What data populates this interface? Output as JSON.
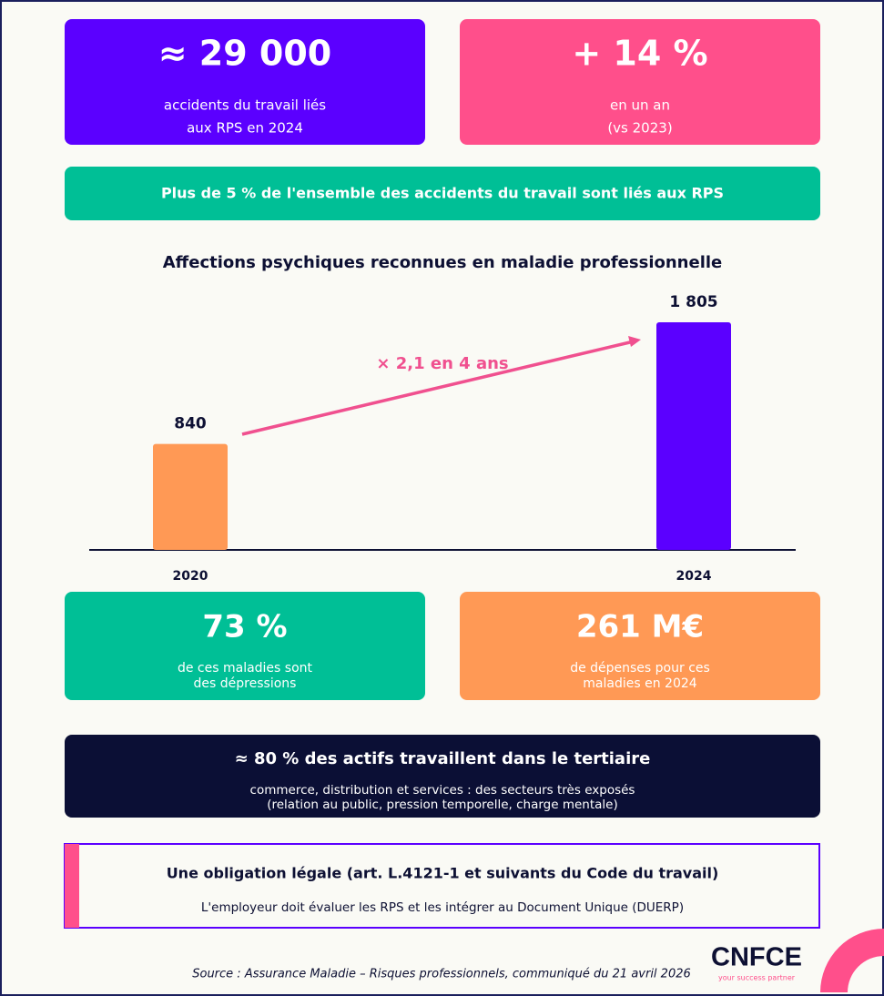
{
  "cards": [
    {
      "value": "≈ 29 000",
      "lines": [
        "accidents du travail liés",
        "aux RPS en 2024"
      ]
    },
    {
      "value": "+ 14 %",
      "lines": [
        "en un an",
        "(vs 2023)"
      ]
    }
  ],
  "banner": "Plus de 5 % de l'ensemble des accidents du travail sont liés aux RPS",
  "chart_data": {
    "type": "bar",
    "title": "Affections psychiques reconnues en maladie professionnelle",
    "categories": [
      "2020",
      "2024"
    ],
    "values": [
      840,
      1805
    ],
    "value_labels": [
      "840",
      "1 805"
    ],
    "colors": [
      "#ff9955",
      "#5b00ff"
    ],
    "ylim": [
      0,
      1805
    ],
    "annotation": "× 2,1 en 4 ans"
  },
  "cards2": [
    {
      "value": "73 %",
      "lines": [
        "de ces maladies sont",
        "des dépressions"
      ]
    },
    {
      "value": "261 M€",
      "lines": [
        "de dépenses pour ces",
        "maladies en 2024"
      ]
    }
  ],
  "tertiary": {
    "title": "≈ 80 % des actifs travaillent dans le tertiaire",
    "lines": [
      "commerce, distribution et services : des secteurs très exposés",
      "(relation au public, pression temporelle, charge mentale)"
    ]
  },
  "legal": {
    "title": "Une obligation légale (art. L.4121-1 et suivants du Code du travail)",
    "text": "L'employeur doit évaluer les RPS et les intégrer au Document Unique (DUERP)"
  },
  "footer": {
    "source": "Source : Assurance Maladie – Risques professionnels, communiqué du 21 avril 2026",
    "logo": "CNFCE",
    "tagline": "your success partner"
  }
}
